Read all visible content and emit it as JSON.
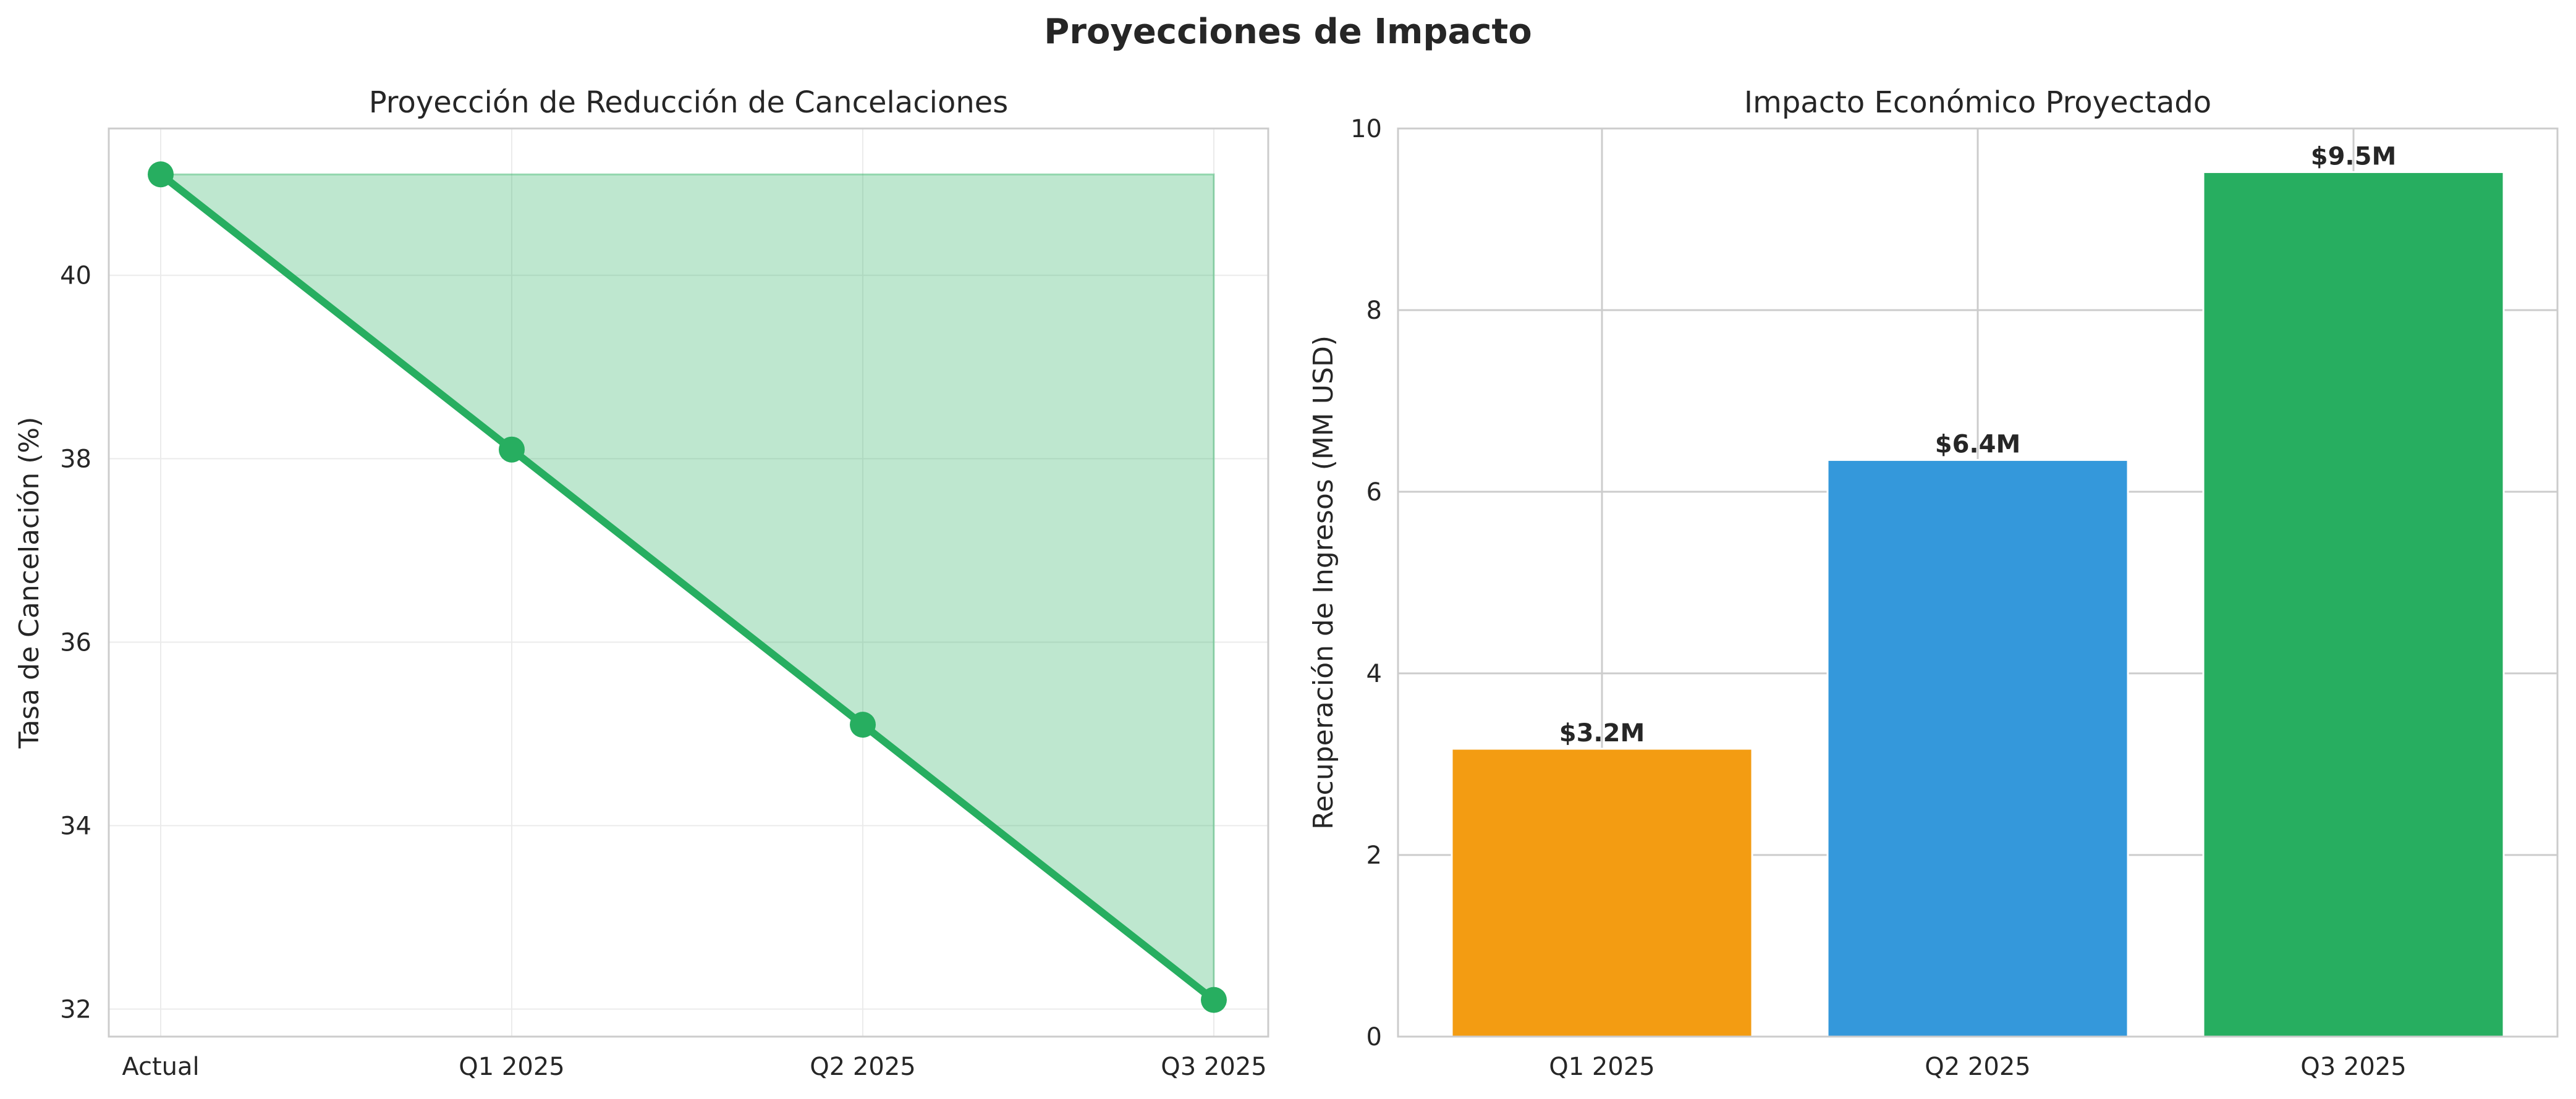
{
  "figure_title": "Proyecciones de Impacto",
  "chart_data": [
    {
      "type": "line",
      "title": "Proyección de Reducción de Cancelaciones",
      "xlabel": "",
      "ylabel": "Tasa de Cancelación (%)",
      "categories": [
        "Actual",
        "Q1 2025",
        "Q2 2025",
        "Q3 2025"
      ],
      "values": [
        41.1,
        38.1,
        35.1,
        32.1
      ],
      "fill_baseline": 41.1,
      "ylim": [
        31.7,
        41.6
      ],
      "yticks": [
        32,
        34,
        36,
        38,
        40
      ],
      "grid": true,
      "colors": {
        "line": "#27ae60",
        "fill": "#27ae60"
      }
    },
    {
      "type": "bar",
      "title": "Impacto Económico Proyectado",
      "xlabel": "",
      "ylabel": "Recuperación de Ingresos (MM USD)",
      "categories": [
        "Q1 2025",
        "Q2 2025",
        "Q3 2025"
      ],
      "values": [
        3.17,
        6.35,
        9.52
      ],
      "data_labels": [
        "$3.2M",
        "$6.4M",
        "$9.5M"
      ],
      "ylim": [
        0,
        10
      ],
      "yticks": [
        0,
        2,
        4,
        6,
        8,
        10
      ],
      "grid": true,
      "colors": [
        "#f39c12",
        "#3498db",
        "#27ae60"
      ]
    }
  ]
}
